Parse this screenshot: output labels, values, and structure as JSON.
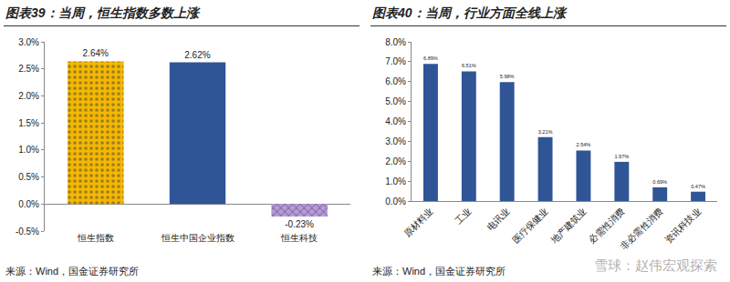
{
  "chart_data": [
    {
      "type": "bar",
      "title": "图表39：当周，恒生指数多数上涨",
      "categories": [
        "恒生指数",
        "恒生中国企业指数",
        "恒生科技"
      ],
      "values": [
        2.64,
        2.62,
        -0.23
      ],
      "value_labels": [
        "2.64%",
        "2.62%",
        "-0.23%"
      ],
      "colors": [
        "#f5b800",
        "#2f5597",
        "#b99ae0"
      ],
      "ylim": [
        -0.5,
        3.0
      ],
      "yticks": [
        {
          "value": -0.5,
          "label": "-0.5%"
        },
        {
          "value": 0,
          "label": "0.0%"
        },
        {
          "value": 0.5,
          "label": "0.5%"
        },
        {
          "value": 1.0,
          "label": "1.0%"
        },
        {
          "value": 1.5,
          "label": "1.5%"
        },
        {
          "value": 2.0,
          "label": "2.0%"
        },
        {
          "value": 2.5,
          "label": "2.5%"
        },
        {
          "value": 3.0,
          "label": "3.0%"
        }
      ],
      "grid": false,
      "data_labels": true,
      "source": "来源：Wind，国金证券研究所"
    },
    {
      "type": "bar",
      "title": "图表40：当周，行业方面全线上涨",
      "categories": [
        "原材料业",
        "工业",
        "电讯业",
        "医疗保健业",
        "地产建筑业",
        "必需性消费",
        "非必需性消费",
        "资讯科技业"
      ],
      "values": [
        6.89,
        6.51,
        5.98,
        3.21,
        2.54,
        1.97,
        0.69,
        0.47
      ],
      "value_labels": [
        "6.89%",
        "6.51%",
        "5.98%",
        "3.21%",
        "2.54%",
        "1.97%",
        "0.69%",
        "0.47%"
      ],
      "color": "#2f5597",
      "ylim": [
        0,
        8.0
      ],
      "yticks": [
        {
          "value": 0,
          "label": "0.0%"
        },
        {
          "value": 1.0,
          "label": "1.0%"
        },
        {
          "value": 2.0,
          "label": "2.0%"
        },
        {
          "value": 3.0,
          "label": "3.0%"
        },
        {
          "value": 4.0,
          "label": "4.0%"
        },
        {
          "value": 5.0,
          "label": "5.0%"
        },
        {
          "value": 6.0,
          "label": "6.0%"
        },
        {
          "value": 7.0,
          "label": "7.0%"
        },
        {
          "value": 8.0,
          "label": "8.0%"
        }
      ],
      "grid": false,
      "data_labels": true,
      "source": "来源：Wind，国金证券研究所",
      "watermark": "雪球：赵伟宏观探索"
    }
  ]
}
